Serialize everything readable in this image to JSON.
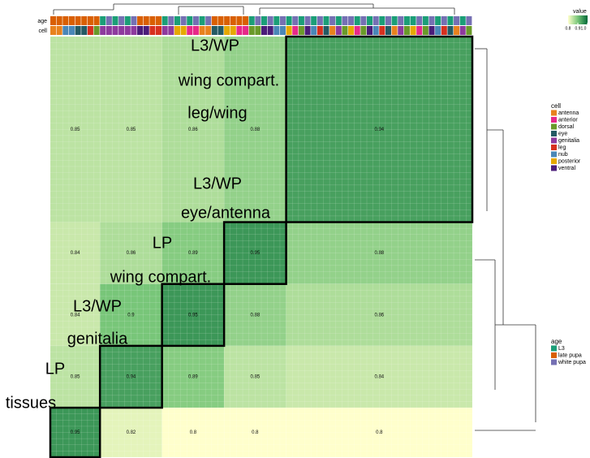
{
  "chart_data": {
    "type": "heatmap",
    "color_scale": {
      "title": "value",
      "colors": [
        "#ffffcc",
        "#78c679",
        "#006837"
      ],
      "lim": [
        0.8,
        1.0
      ],
      "ticks": [
        0.8,
        0.9,
        {
          "value": 1.0,
          "label": "1.0"
        }
      ]
    },
    "matrix": [
      [
        0.85,
        0.85,
        0.86,
        0.88,
        0.94
      ],
      [
        0.84,
        0.86,
        0.89,
        0.95,
        0.88
      ],
      [
        0.84,
        0.9,
        0.95,
        0.88,
        0.86
      ],
      [
        0.85,
        0.94,
        0.89,
        0.85,
        0.84
      ],
      [
        0.95,
        0.82,
        0.8,
        0.8,
        0.8
      ]
    ],
    "annotation_rows": [
      "age",
      "cell"
    ],
    "cell_legend": {
      "title": "cell",
      "items": [
        {
          "name": "antenna",
          "color": "#e8821e"
        },
        {
          "name": "anterior",
          "color": "#e7298a"
        },
        {
          "name": "dorsal",
          "color": "#6a9a2a"
        },
        {
          "name": "eye",
          "color": "#245a64"
        },
        {
          "name": "genitalia",
          "color": "#8e3a9e"
        },
        {
          "name": "leg",
          "color": "#d7301f"
        },
        {
          "name": "nub",
          "color": "#4a87b8"
        },
        {
          "name": "posterior",
          "color": "#e6a800"
        },
        {
          "name": "ventral",
          "color": "#4b1d7a"
        }
      ]
    },
    "age_legend": {
      "title": "age",
      "items": [
        {
          "name": "L3",
          "color": "#1b9e77"
        },
        {
          "name": "late pupa",
          "color": "#d95f02"
        },
        {
          "name": "white pupa",
          "color": "#7570b3"
        }
      ]
    },
    "age": [
      "late pupa",
      "late pupa",
      "late pupa",
      "late pupa",
      "late pupa",
      "late pupa",
      "late pupa",
      "late pupa",
      "L3",
      "white pupa",
      "L3",
      "white pupa",
      "L3",
      "white pupa",
      "late pupa",
      "late pupa",
      "late pupa",
      "late pupa",
      "L3",
      "white pupa",
      "L3",
      "white pupa",
      "L3",
      "white pupa",
      "L3",
      "white pupa",
      "late pupa",
      "late pupa",
      "late pupa",
      "late pupa",
      "late pupa",
      "late pupa",
      "L3",
      "white pupa",
      "L3",
      "white pupa",
      "L3",
      "white pupa",
      "L3",
      "white pupa",
      "L3",
      "white pupa",
      "L3",
      "white pupa",
      "L3",
      "white pupa",
      "L3",
      "white pupa",
      "white pupa",
      "L3",
      "white pupa",
      "L3",
      "white pupa",
      "L3",
      "white pupa",
      "L3",
      "white pupa",
      "L3",
      "L3",
      "white pupa",
      "L3",
      "white pupa",
      "L3",
      "white pupa",
      "L3",
      "white pupa",
      "L3",
      "white pupa"
    ],
    "cell": [
      "antenna",
      "antenna",
      "nub",
      "nub",
      "eye",
      "eye",
      "leg",
      "dorsal",
      "genitalia",
      "genitalia",
      "genitalia",
      "genitalia",
      "genitalia",
      "genitalia",
      "ventral",
      "ventral",
      "leg",
      "leg",
      "genitalia",
      "genitalia",
      "posterior",
      "posterior",
      "anterior",
      "anterior",
      "antenna",
      "antenna",
      "eye",
      "eye",
      "posterior",
      "posterior",
      "anterior",
      "anterior",
      "dorsal",
      "dorsal",
      "ventral",
      "ventral",
      "nub",
      "nub",
      "posterior",
      "anterior",
      "dorsal",
      "ventral",
      "nub",
      "leg",
      "eye",
      "antenna",
      "genitalia",
      "dorsal",
      "posterior",
      "anterior",
      "dorsal",
      "ventral",
      "nub",
      "leg",
      "eye",
      "antenna",
      "genitalia",
      "dorsal",
      "posterior",
      "anterior",
      "dorsal",
      "ventral",
      "nub",
      "leg",
      "eye",
      "antenna",
      "genitalia",
      "dorsal"
    ],
    "annotations": [
      "L3/WP",
      "wing compart.",
      "leg/wing",
      "L3/WP",
      "eye/antenna",
      "LP",
      "wing compart.",
      "L3/WP",
      "genitalia",
      "LP",
      "tissues"
    ]
  }
}
